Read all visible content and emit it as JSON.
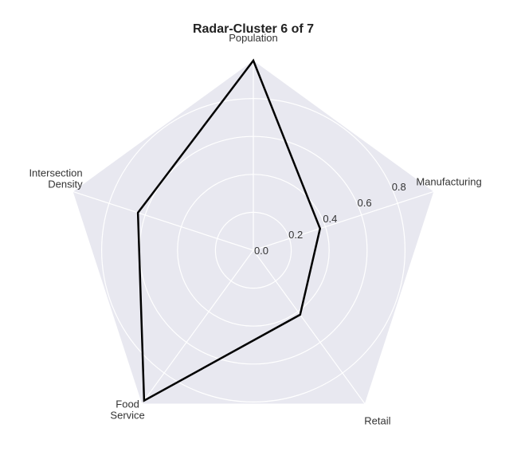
{
  "chart_data": {
    "type": "radar",
    "title": "Radar-Cluster 6 of 7",
    "axes": [
      {
        "label_lines": [
          "Population"
        ]
      },
      {
        "label_lines": [
          "Manufacturing"
        ]
      },
      {
        "label_lines": [
          "Retail"
        ]
      },
      {
        "label_lines": [
          "Food",
          "Service"
        ]
      },
      {
        "label_lines": [
          "Intersection",
          "Density"
        ]
      }
    ],
    "rings": [
      0.2,
      0.4,
      0.6,
      0.8,
      1.0
    ],
    "tick_labels": [
      {
        "value": 0.0,
        "text": "0.0"
      },
      {
        "value": 0.2,
        "text": "0.2"
      },
      {
        "value": 0.4,
        "text": "0.4"
      },
      {
        "value": 0.6,
        "text": "0.6"
      },
      {
        "value": 0.8,
        "text": "0.8"
      }
    ],
    "rlim": [
      0,
      1.0
    ],
    "series": [
      {
        "values": [
          1.0,
          0.37,
          0.42,
          0.98,
          0.64
        ]
      }
    ],
    "colors": {
      "background": "#e8e8f0",
      "grid": "#ffffff",
      "line": "#000000"
    },
    "grid": true
  }
}
